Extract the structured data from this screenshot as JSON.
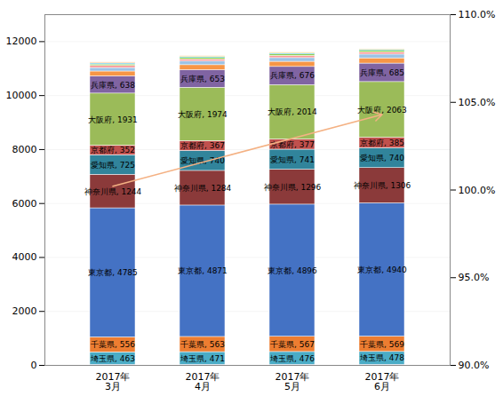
{
  "chart_data": {
    "type": "bar",
    "stacked": true,
    "grid": true,
    "categories": [
      "2017年\n3月",
      "2017年\n4月",
      "2017年\n5月",
      "2017年\n6月"
    ],
    "ylim": [
      0,
      13000
    ],
    "yticks": [
      0,
      2000,
      4000,
      6000,
      8000,
      10000,
      12000
    ],
    "y2lim": [
      90.0,
      110.0
    ],
    "y2ticks": [
      {
        "value": 90.0,
        "label": "90.0%"
      },
      {
        "value": 95.0,
        "label": "95.0%"
      },
      {
        "value": 100.0,
        "label": "100.0%"
      },
      {
        "value": 105.0,
        "label": "105.0%"
      },
      {
        "value": 110.0,
        "label": "110.0%"
      }
    ],
    "series": [
      {
        "color": "#7030A0",
        "values": [
          20,
          21,
          21,
          22
        ]
      },
      {
        "color": "#4BACC6",
        "values": [
          463,
          471,
          476,
          478
        ],
        "value_labels": [
          "埼玉県, 463",
          "埼玉県, 471",
          "埼玉県, 476",
          "埼玉県, 478"
        ]
      },
      {
        "color": "#ED7D31",
        "values": [
          556,
          563,
          567,
          569
        ],
        "value_labels": [
          "千葉県, 556",
          "千葉県, 563",
          "千葉県, 567",
          "千葉県, 569"
        ]
      },
      {
        "color": "#4472C4",
        "values": [
          4785,
          4871,
          4896,
          4940
        ],
        "value_labels": [
          "東京都, 4785",
          "東京都, 4871",
          "東京都, 4896",
          "東京都, 4940"
        ]
      },
      {
        "color": "#8B3A3A",
        "values": [
          1244,
          1284,
          1296,
          1306
        ],
        "value_labels": [
          "神奈川県, 1244",
          "神奈川県, 1284",
          "神奈川県, 1296",
          "神奈川県, 1306"
        ]
      },
      {
        "color": "#31849B",
        "values": [
          725,
          740,
          741,
          740
        ],
        "value_labels": [
          "愛知県, 725",
          "愛知県, 740",
          "愛知県, 741",
          "愛知県, 740"
        ]
      },
      {
        "color": "#C0504D",
        "values": [
          352,
          367,
          377,
          385
        ],
        "value_labels": [
          "京都府, 352",
          "京都府, 367",
          "京都府, 377",
          "京都府, 385"
        ]
      },
      {
        "color": "#9BBB59",
        "values": [
          1931,
          1974,
          2014,
          2063
        ],
        "value_labels": [
          "大阪府, 1931",
          "大阪府, 1974",
          "大阪府, 2014",
          "大阪府, 2063"
        ]
      },
      {
        "color": "#8064A2",
        "values": [
          638,
          653,
          676,
          685
        ],
        "value_labels": [
          "兵庫県, 638",
          "兵庫県, 653",
          "兵庫県, 676",
          "兵庫県, 685"
        ]
      },
      {
        "color": "#F79646",
        "values": [
          180,
          185,
          190,
          194
        ]
      },
      {
        "color": "#9DC3E6",
        "values": [
          130,
          134,
          137,
          140
        ]
      },
      {
        "color": "#FF9999",
        "values": [
          75,
          77,
          79,
          81
        ]
      },
      {
        "color": "#92D050",
        "values": [
          55,
          57,
          58,
          59
        ]
      },
      {
        "color": "#00B0F0",
        "values": [
          35,
          36,
          37,
          38
        ]
      },
      {
        "color": "#FFC000",
        "values": [
          22,
          23,
          23,
          24
        ]
      },
      {
        "color": "#FF6600",
        "values": [
          14,
          15,
          15,
          16
        ]
      }
    ],
    "annotations": [
      {
        "type": "arrow",
        "from": {
          "category": "2017年\n3月",
          "y": 6640
        },
        "to": {
          "category": "2017年\n6月",
          "y": 9300
        },
        "color": "#F4B183"
      }
    ]
  }
}
